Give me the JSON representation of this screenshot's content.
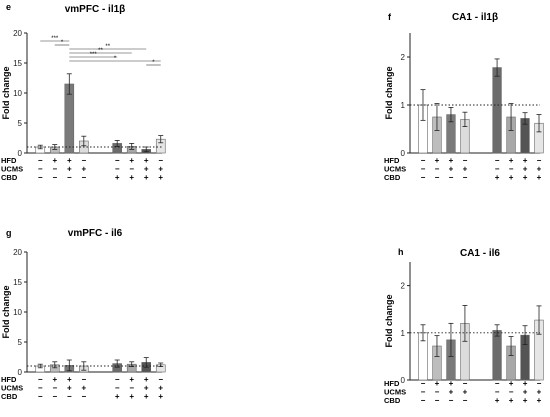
{
  "figure": {
    "condition_rows": [
      "HFD",
      "UCMS",
      "CBD"
    ],
    "conditions": [
      {
        "HFD": "−",
        "UCMS": "−",
        "CBD": "−"
      },
      {
        "HFD": "+",
        "UCMS": "−",
        "CBD": "−"
      },
      {
        "HFD": "+",
        "UCMS": "+",
        "CBD": "−"
      },
      {
        "HFD": "−",
        "UCMS": "+",
        "CBD": "−"
      },
      {
        "HFD": "−",
        "UCMS": "−",
        "CBD": "+"
      },
      {
        "HFD": "+",
        "UCMS": "−",
        "CBD": "+"
      },
      {
        "HFD": "+",
        "UCMS": "+",
        "CBD": "+"
      },
      {
        "HFD": "−",
        "UCMS": "+",
        "CBD": "+"
      }
    ],
    "colors": [
      "#ffffff",
      "#bdbdbd",
      "#7a7a7a",
      "#dcdcdc",
      "#6b6b6b",
      "#a8a8a8",
      "#555555",
      "#e6e6e6"
    ]
  },
  "chart_data": [
    {
      "panel": "e",
      "type": "bar",
      "title": "vmPFC - il1β",
      "ylabel": "Fold change",
      "ylim": [
        0,
        20
      ],
      "yticks": [
        0,
        5,
        10,
        15,
        20
      ],
      "reference_line": 1,
      "values": [
        1.0,
        1.0,
        11.5,
        2.0,
        1.6,
        1.1,
        0.6,
        2.3
      ],
      "errors": [
        0.3,
        0.4,
        1.7,
        0.8,
        0.5,
        0.5,
        0.4,
        0.6
      ],
      "significance": [
        {
          "from": 0,
          "to": 2,
          "label": "***"
        },
        {
          "from": 1,
          "to": 2,
          "label": "*"
        },
        {
          "from": 2,
          "to": 6,
          "label": "**"
        },
        {
          "from": 2,
          "to": 5,
          "label": "**"
        },
        {
          "from": 2,
          "to": 4,
          "label": "***"
        },
        {
          "from": 2,
          "to": 7,
          "label": "*"
        },
        {
          "from": 6,
          "to": 7,
          "label": "*"
        }
      ]
    },
    {
      "panel": "f",
      "type": "bar",
      "title": "CA1 - il1β",
      "ylabel": "Fold change",
      "ylim": [
        0,
        2.5
      ],
      "yticks": [
        0,
        1,
        2
      ],
      "reference_line": 1,
      "values": [
        1.0,
        0.75,
        0.8,
        0.7,
        1.78,
        0.75,
        0.72,
        0.62
      ],
      "errors": [
        0.32,
        0.28,
        0.15,
        0.15,
        0.18,
        0.28,
        0.12,
        0.18
      ],
      "significance": []
    },
    {
      "panel": "g",
      "type": "bar",
      "title": "vmPFC - il6",
      "ylabel": "Fold change",
      "ylim": [
        0,
        20
      ],
      "yticks": [
        0,
        5,
        10,
        15,
        20
      ],
      "reference_line": 1,
      "values": [
        1.0,
        1.2,
        1.1,
        1.0,
        1.4,
        1.3,
        1.6,
        1.2
      ],
      "errors": [
        0.3,
        0.5,
        0.9,
        0.7,
        0.6,
        0.4,
        0.8,
        0.3
      ],
      "significance": []
    },
    {
      "panel": "h",
      "type": "bar",
      "title": "CA1 - il6",
      "ylabel": "Fold change",
      "ylim": [
        0,
        2.5
      ],
      "yticks": [
        0,
        1,
        2
      ],
      "reference_line": 1,
      "values": [
        1.0,
        0.72,
        0.85,
        1.2,
        1.05,
        0.72,
        0.95,
        1.27
      ],
      "errors": [
        0.17,
        0.22,
        0.35,
        0.38,
        0.12,
        0.2,
        0.2,
        0.3
      ],
      "significance": []
    }
  ]
}
